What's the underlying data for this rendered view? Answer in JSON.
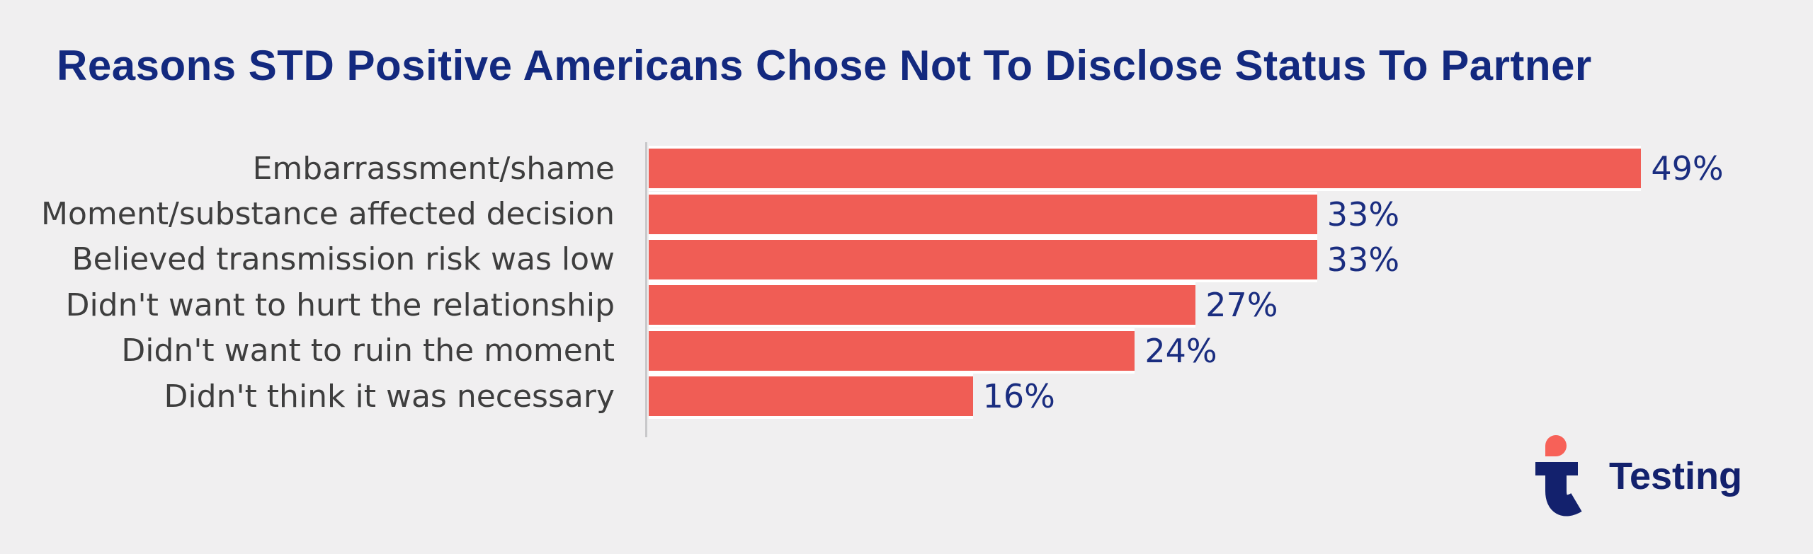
{
  "title": "Reasons STD Positive Americans Chose Not To Disclose Status To Partner",
  "chart_data": {
    "type": "bar",
    "orientation": "horizontal",
    "title": "Reasons STD Positive Americans Chose Not To Disclose Status To Partner",
    "categories": [
      "Embarrassment/shame",
      "Moment/substance affected decision",
      "Believed transmission risk was low",
      "Didn't want to hurt the relationship",
      "Didn't want to ruin the moment",
      "Didn't think it was necessary"
    ],
    "values": [
      49,
      33,
      33,
      27,
      24,
      16
    ],
    "data_labels": [
      "49%",
      "33%",
      "33%",
      "27%",
      "24%",
      "16%"
    ],
    "value_unit": "%",
    "xlabel": "",
    "ylabel": "",
    "xlim": [
      0,
      49
    ],
    "grid": false,
    "legend": false,
    "bar_color": "#f05d55",
    "category_label_color": "#3e3e3e",
    "value_label_color": "#1a2d80"
  },
  "colors": {
    "background": "#f0eff0",
    "title": "#13297f",
    "axis_line": "#c8c8ca",
    "bar_separator": "#ffffff",
    "logo_navy": "#13216d",
    "logo_coral": "#f76158"
  },
  "branding": {
    "logo_text": "Testing",
    "logo_icon": "t-with-coral-dot"
  }
}
